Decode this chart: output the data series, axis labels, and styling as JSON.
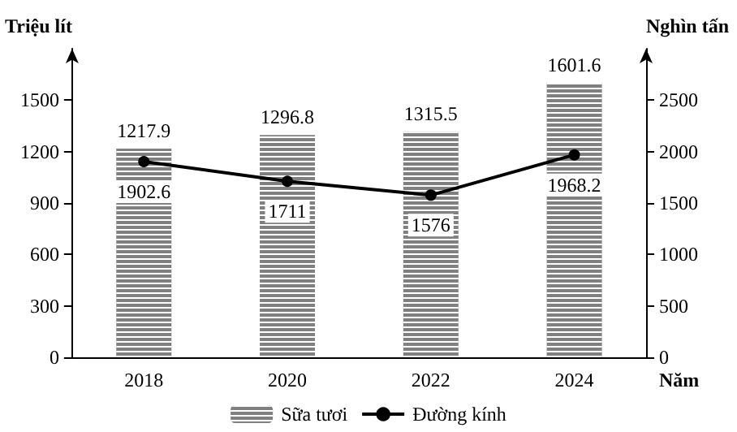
{
  "chart_data": {
    "type": "bar",
    "categories": [
      "2018",
      "2020",
      "2022",
      "2024"
    ],
    "xlabel": "Năm",
    "ylabel": "Triệu lít",
    "y2label": "Nghìn tấn",
    "series": [
      {
        "name": "Sữa tươi",
        "color": "#808080",
        "values": [
          1217.9,
          1296.8,
          1315.5,
          1601.6
        ]
      },
      {
        "name": "Đường kính",
        "type": "line",
        "axis": "y2",
        "color": "#000000",
        "values": [
          1902.6,
          1711,
          1576,
          1968.2
        ]
      }
    ],
    "ylim": [
      0,
      1800
    ],
    "yticks": [
      0,
      300,
      600,
      900,
      1200,
      1500
    ],
    "y2lim": [
      0,
      3000
    ],
    "y2ticks": [
      0,
      500,
      1000,
      1500,
      2000,
      2500
    ],
    "data_labels": true,
    "marker": "circle",
    "line_style": "solid",
    "grid": false,
    "legend": "bottom"
  }
}
